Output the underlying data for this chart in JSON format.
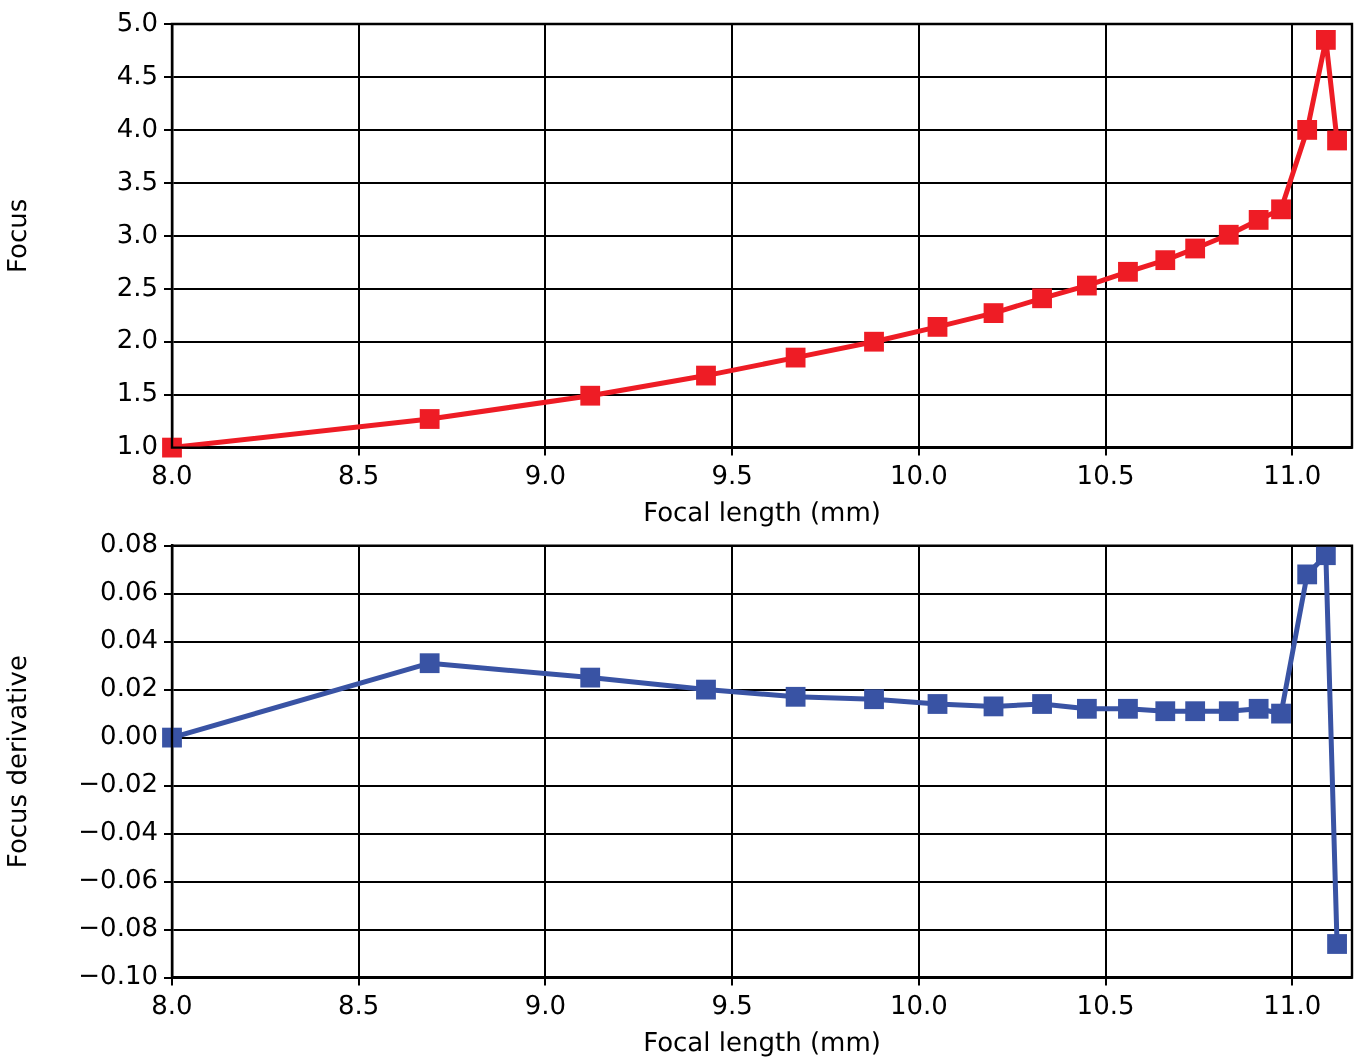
{
  "chart_data": [
    {
      "type": "line",
      "xlabel": "Focal length (mm)",
      "ylabel": "Focus",
      "x": [
        8.0,
        8.69,
        9.12,
        9.43,
        9.67,
        9.88,
        10.05,
        10.2,
        10.33,
        10.45,
        10.56,
        10.66,
        10.74,
        10.83,
        10.91,
        10.97,
        11.04,
        11.09,
        11.12
      ],
      "series": [
        {
          "color": "#ee1c25",
          "values": [
            1.0,
            1.27,
            1.49,
            1.68,
            1.85,
            2.0,
            2.14,
            2.27,
            2.41,
            2.53,
            2.66,
            2.77,
            2.88,
            3.01,
            3.15,
            3.25,
            4.0,
            4.85,
            3.9
          ]
        }
      ],
      "xlim": [
        8.0,
        11.16
      ],
      "xticks": [
        {
          "value": 8.0,
          "label": "8.0"
        },
        8.5,
        {
          "value": 9.0,
          "label": "9.0"
        },
        9.5,
        {
          "value": 10.0,
          "label": "10.0"
        },
        10.5,
        {
          "value": 11.0,
          "label": "11.0"
        }
      ],
      "ylim": [
        1.0,
        5.0
      ],
      "yticks": [
        {
          "value": 1.0,
          "label": "1.0"
        },
        1.5,
        {
          "value": 2.0,
          "label": "2.0"
        },
        2.5,
        {
          "value": 3.0,
          "label": "3.0"
        },
        3.5,
        {
          "value": 4.0,
          "label": "4.0"
        },
        4.5,
        {
          "value": 5.0,
          "label": "5.0"
        }
      ],
      "grid": true,
      "marker": "square",
      "legend": false
    },
    {
      "type": "line",
      "xlabel": "Focal length (mm)",
      "ylabel": "Focus derivative",
      "x": [
        8.0,
        8.69,
        9.12,
        9.43,
        9.67,
        9.88,
        10.05,
        10.2,
        10.33,
        10.45,
        10.56,
        10.66,
        10.74,
        10.83,
        10.91,
        10.97,
        11.04,
        11.09,
        11.12
      ],
      "series": [
        {
          "color": "#3953a4",
          "values": [
            0.0,
            0.031,
            0.025,
            0.02,
            0.017,
            0.016,
            0.014,
            0.013,
            0.014,
            0.012,
            0.012,
            0.011,
            0.011,
            0.011,
            0.012,
            0.01,
            0.068,
            0.076,
            -0.086
          ]
        }
      ],
      "xlim": [
        8.0,
        11.16
      ],
      "xticks": [
        {
          "value": 8.0,
          "label": "8.0"
        },
        8.5,
        {
          "value": 9.0,
          "label": "9.0"
        },
        9.5,
        {
          "value": 10.0,
          "label": "10.0"
        },
        10.5,
        {
          "value": 11.0,
          "label": "11.0"
        }
      ],
      "ylim": [
        -0.1,
        0.08
      ],
      "yticks": [
        {
          "value": -0.1,
          "label": "−0.10"
        },
        {
          "value": -0.08,
          "label": "−0.08"
        },
        {
          "value": -0.06,
          "label": "−0.06"
        },
        {
          "value": -0.04,
          "label": "−0.04"
        },
        {
          "value": -0.02,
          "label": "−0.02"
        },
        {
          "value": 0,
          "label": "0.00"
        },
        {
          "value": 0.02,
          "label": "0.02"
        },
        {
          "value": 0.04,
          "label": "0.04"
        },
        {
          "value": 0.06,
          "label": "0.06"
        },
        {
          "value": 0.08,
          "label": "0.08"
        }
      ],
      "grid": true,
      "marker": "square",
      "legend": false
    }
  ]
}
